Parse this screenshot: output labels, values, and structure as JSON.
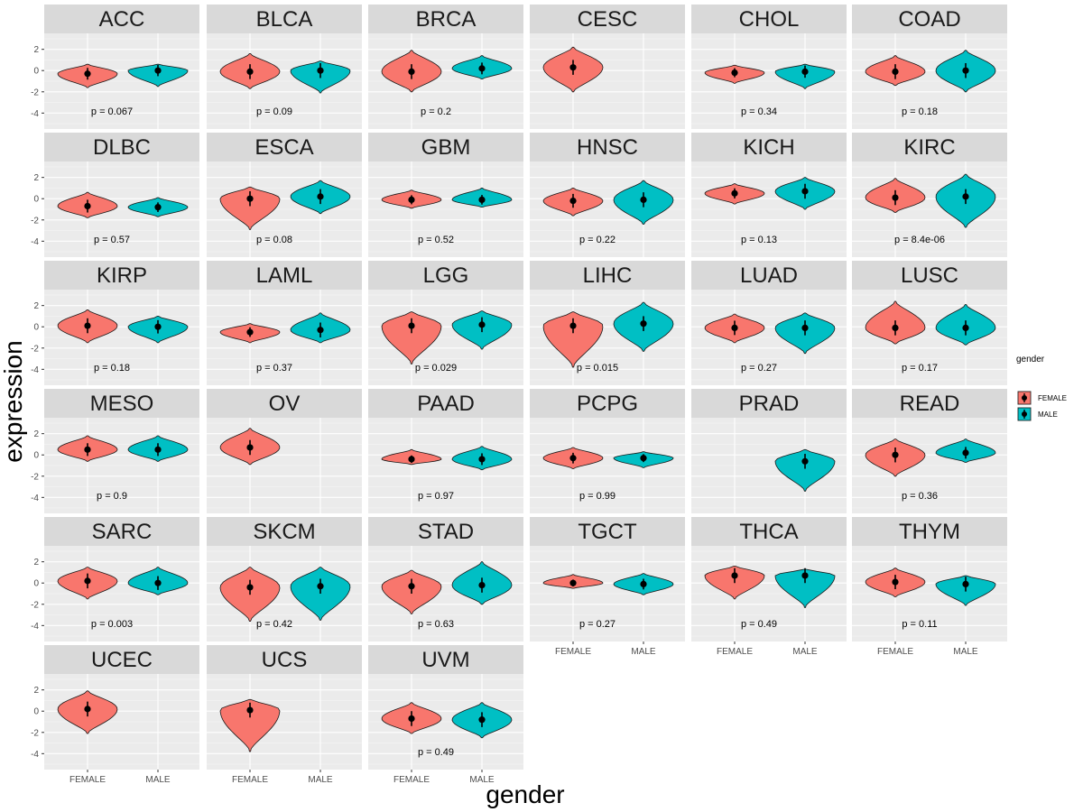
{
  "chart_data": {
    "type": "violin",
    "xlabel": "gender",
    "ylabel": "expression",
    "categories": [
      "FEMALE",
      "MALE"
    ],
    "yticks": [
      2,
      0,
      -2,
      -4
    ],
    "ylim": [
      -5.5,
      3.5
    ],
    "colors": {
      "FEMALE": "#F8766D",
      "MALE": "#00BFC4"
    },
    "legend": {
      "title": "gender",
      "items": [
        "FEMALE",
        "MALE"
      ],
      "position": "right"
    },
    "panels": [
      {
        "name": "ACC",
        "p": "p = 0.067",
        "female": {
          "median": -0.3,
          "min": -1.6,
          "max": 0.6
        },
        "male": {
          "median": 0.0,
          "min": -1.5,
          "max": 0.6
        }
      },
      {
        "name": "BLCA",
        "p": "p = 0.09",
        "female": {
          "median": -0.1,
          "min": -1.7,
          "max": 1.6
        },
        "male": {
          "median": 0.0,
          "min": -2.1,
          "max": 0.9
        }
      },
      {
        "name": "BRCA",
        "p": "p = 0.2",
        "female": {
          "median": -0.1,
          "min": -2.0,
          "max": 1.9
        },
        "male": {
          "median": 0.2,
          "min": -0.8,
          "max": 1.4
        }
      },
      {
        "name": "CESC",
        "p": "",
        "female": {
          "median": 0.3,
          "min": -2.0,
          "max": 2.2
        },
        "male": null
      },
      {
        "name": "CHOL",
        "p": "p = 0.34",
        "female": {
          "median": -0.2,
          "min": -1.2,
          "max": 0.5
        },
        "male": {
          "median": -0.1,
          "min": -1.7,
          "max": 0.6
        }
      },
      {
        "name": "COAD",
        "p": "p = 0.18",
        "female": {
          "median": -0.1,
          "min": -1.4,
          "max": 1.4
        },
        "male": {
          "median": 0.0,
          "min": -2.0,
          "max": 1.9
        }
      },
      {
        "name": "DLBC",
        "p": "p = 0.57",
        "female": {
          "median": -0.7,
          "min": -1.8,
          "max": 0.6
        },
        "male": {
          "median": -0.8,
          "min": -1.7,
          "max": 0.1
        }
      },
      {
        "name": "ESCA",
        "p": "p = 0.08",
        "female": {
          "median": 0.0,
          "min": -2.9,
          "max": 1.1
        },
        "male": {
          "median": 0.2,
          "min": -1.4,
          "max": 1.7
        }
      },
      {
        "name": "GBM",
        "p": "p = 0.52",
        "female": {
          "median": -0.1,
          "min": -0.9,
          "max": 0.8
        },
        "male": {
          "median": -0.1,
          "min": -0.8,
          "max": 1.0
        }
      },
      {
        "name": "HNSC",
        "p": "p = 0.22",
        "female": {
          "median": -0.2,
          "min": -1.6,
          "max": 1.0
        },
        "male": {
          "median": -0.1,
          "min": -2.4,
          "max": 1.7
        }
      },
      {
        "name": "KICH",
        "p": "p = 0.13",
        "female": {
          "median": 0.5,
          "min": -0.5,
          "max": 1.4
        },
        "male": {
          "median": 0.7,
          "min": -1.0,
          "max": 2.0
        }
      },
      {
        "name": "KIRC",
        "p": "p = 8.4e-06",
        "female": {
          "median": 0.1,
          "min": -1.3,
          "max": 1.9
        },
        "male": {
          "median": 0.2,
          "min": -2.7,
          "max": 2.3
        }
      },
      {
        "name": "KIRP",
        "p": "p = 0.18",
        "female": {
          "median": 0.1,
          "min": -1.5,
          "max": 1.6
        },
        "male": {
          "median": 0.0,
          "min": -1.5,
          "max": 1.0
        }
      },
      {
        "name": "LAML",
        "p": "p = 0.37",
        "female": {
          "median": -0.5,
          "min": -1.5,
          "max": 0.3
        },
        "male": {
          "median": -0.3,
          "min": -1.5,
          "max": 1.3
        }
      },
      {
        "name": "LGG",
        "p": "p = 0.029",
        "female": {
          "median": 0.1,
          "min": -3.5,
          "max": 1.4
        },
        "male": {
          "median": 0.2,
          "min": -2.1,
          "max": 1.5
        }
      },
      {
        "name": "LIHC",
        "p": "p = 0.015",
        "female": {
          "median": 0.1,
          "min": -3.8,
          "max": 1.4
        },
        "male": {
          "median": 0.3,
          "min": -2.3,
          "max": 2.3
        }
      },
      {
        "name": "LUAD",
        "p": "p = 0.27",
        "female": {
          "median": -0.1,
          "min": -1.5,
          "max": 1.2
        },
        "male": {
          "median": -0.1,
          "min": -2.5,
          "max": 1.3
        }
      },
      {
        "name": "LUSC",
        "p": "p = 0.17",
        "female": {
          "median": -0.1,
          "min": -1.6,
          "max": 2.4
        },
        "male": {
          "median": -0.1,
          "min": -1.7,
          "max": 2.1
        }
      },
      {
        "name": "MESO",
        "p": "p = 0.9",
        "female": {
          "median": 0.5,
          "min": -0.6,
          "max": 1.8
        },
        "male": {
          "median": 0.5,
          "min": -0.6,
          "max": 1.8
        }
      },
      {
        "name": "OV",
        "p": "",
        "female": {
          "median": 0.7,
          "min": -0.9,
          "max": 2.5
        },
        "male": null
      },
      {
        "name": "PAAD",
        "p": "p = 0.97",
        "female": {
          "median": -0.4,
          "min": -0.9,
          "max": 0.5
        },
        "male": {
          "median": -0.4,
          "min": -1.4,
          "max": 0.8
        }
      },
      {
        "name": "PCPG",
        "p": "p = 0.99",
        "female": {
          "median": -0.3,
          "min": -1.3,
          "max": 0.7
        },
        "male": {
          "median": -0.3,
          "min": -1.2,
          "max": 0.3
        }
      },
      {
        "name": "PRAD",
        "p": "",
        "female": null,
        "male": {
          "median": -0.6,
          "min": -3.4,
          "max": 0.5
        }
      },
      {
        "name": "READ",
        "p": "p = 0.36",
        "female": {
          "median": 0.0,
          "min": -2.0,
          "max": 1.5
        },
        "male": {
          "median": 0.2,
          "min": -0.7,
          "max": 1.5
        }
      },
      {
        "name": "SARC",
        "p": "p = 0.003",
        "female": {
          "median": 0.2,
          "min": -1.5,
          "max": 1.5
        },
        "male": {
          "median": 0.0,
          "min": -1.1,
          "max": 1.5
        }
      },
      {
        "name": "SKCM",
        "p": "p = 0.42",
        "female": {
          "median": -0.4,
          "min": -3.6,
          "max": 1.5
        },
        "male": {
          "median": -0.3,
          "min": -3.5,
          "max": 1.5
        }
      },
      {
        "name": "STAD",
        "p": "p = 0.63",
        "female": {
          "median": -0.3,
          "min": -2.9,
          "max": 1.2
        },
        "male": {
          "median": -0.2,
          "min": -2.0,
          "max": 2.0
        }
      },
      {
        "name": "TGCT",
        "p": "p = 0.27",
        "female": {
          "median": 0.0,
          "min": -0.5,
          "max": 0.8
        },
        "male": {
          "median": -0.1,
          "min": -1.1,
          "max": 0.9
        }
      },
      {
        "name": "THCA",
        "p": "p = 0.49",
        "female": {
          "median": 0.7,
          "min": -1.5,
          "max": 1.6
        },
        "male": {
          "median": 0.7,
          "min": -2.3,
          "max": 1.3
        }
      },
      {
        "name": "THYM",
        "p": "p = 0.11",
        "female": {
          "median": 0.1,
          "min": -1.3,
          "max": 1.4
        },
        "male": {
          "median": -0.1,
          "min": -2.1,
          "max": 0.7
        }
      },
      {
        "name": "UCEC",
        "p": "",
        "female": {
          "median": 0.2,
          "min": -2.1,
          "max": 1.9
        },
        "male": null
      },
      {
        "name": "UCS",
        "p": "",
        "female": {
          "median": 0.1,
          "min": -3.8,
          "max": 1.1
        },
        "male": null
      },
      {
        "name": "UVM",
        "p": "p = 0.49",
        "female": {
          "median": -0.7,
          "min": -2.1,
          "max": 0.8
        },
        "male": {
          "median": -0.8,
          "min": -2.5,
          "max": 0.8
        }
      }
    ]
  }
}
